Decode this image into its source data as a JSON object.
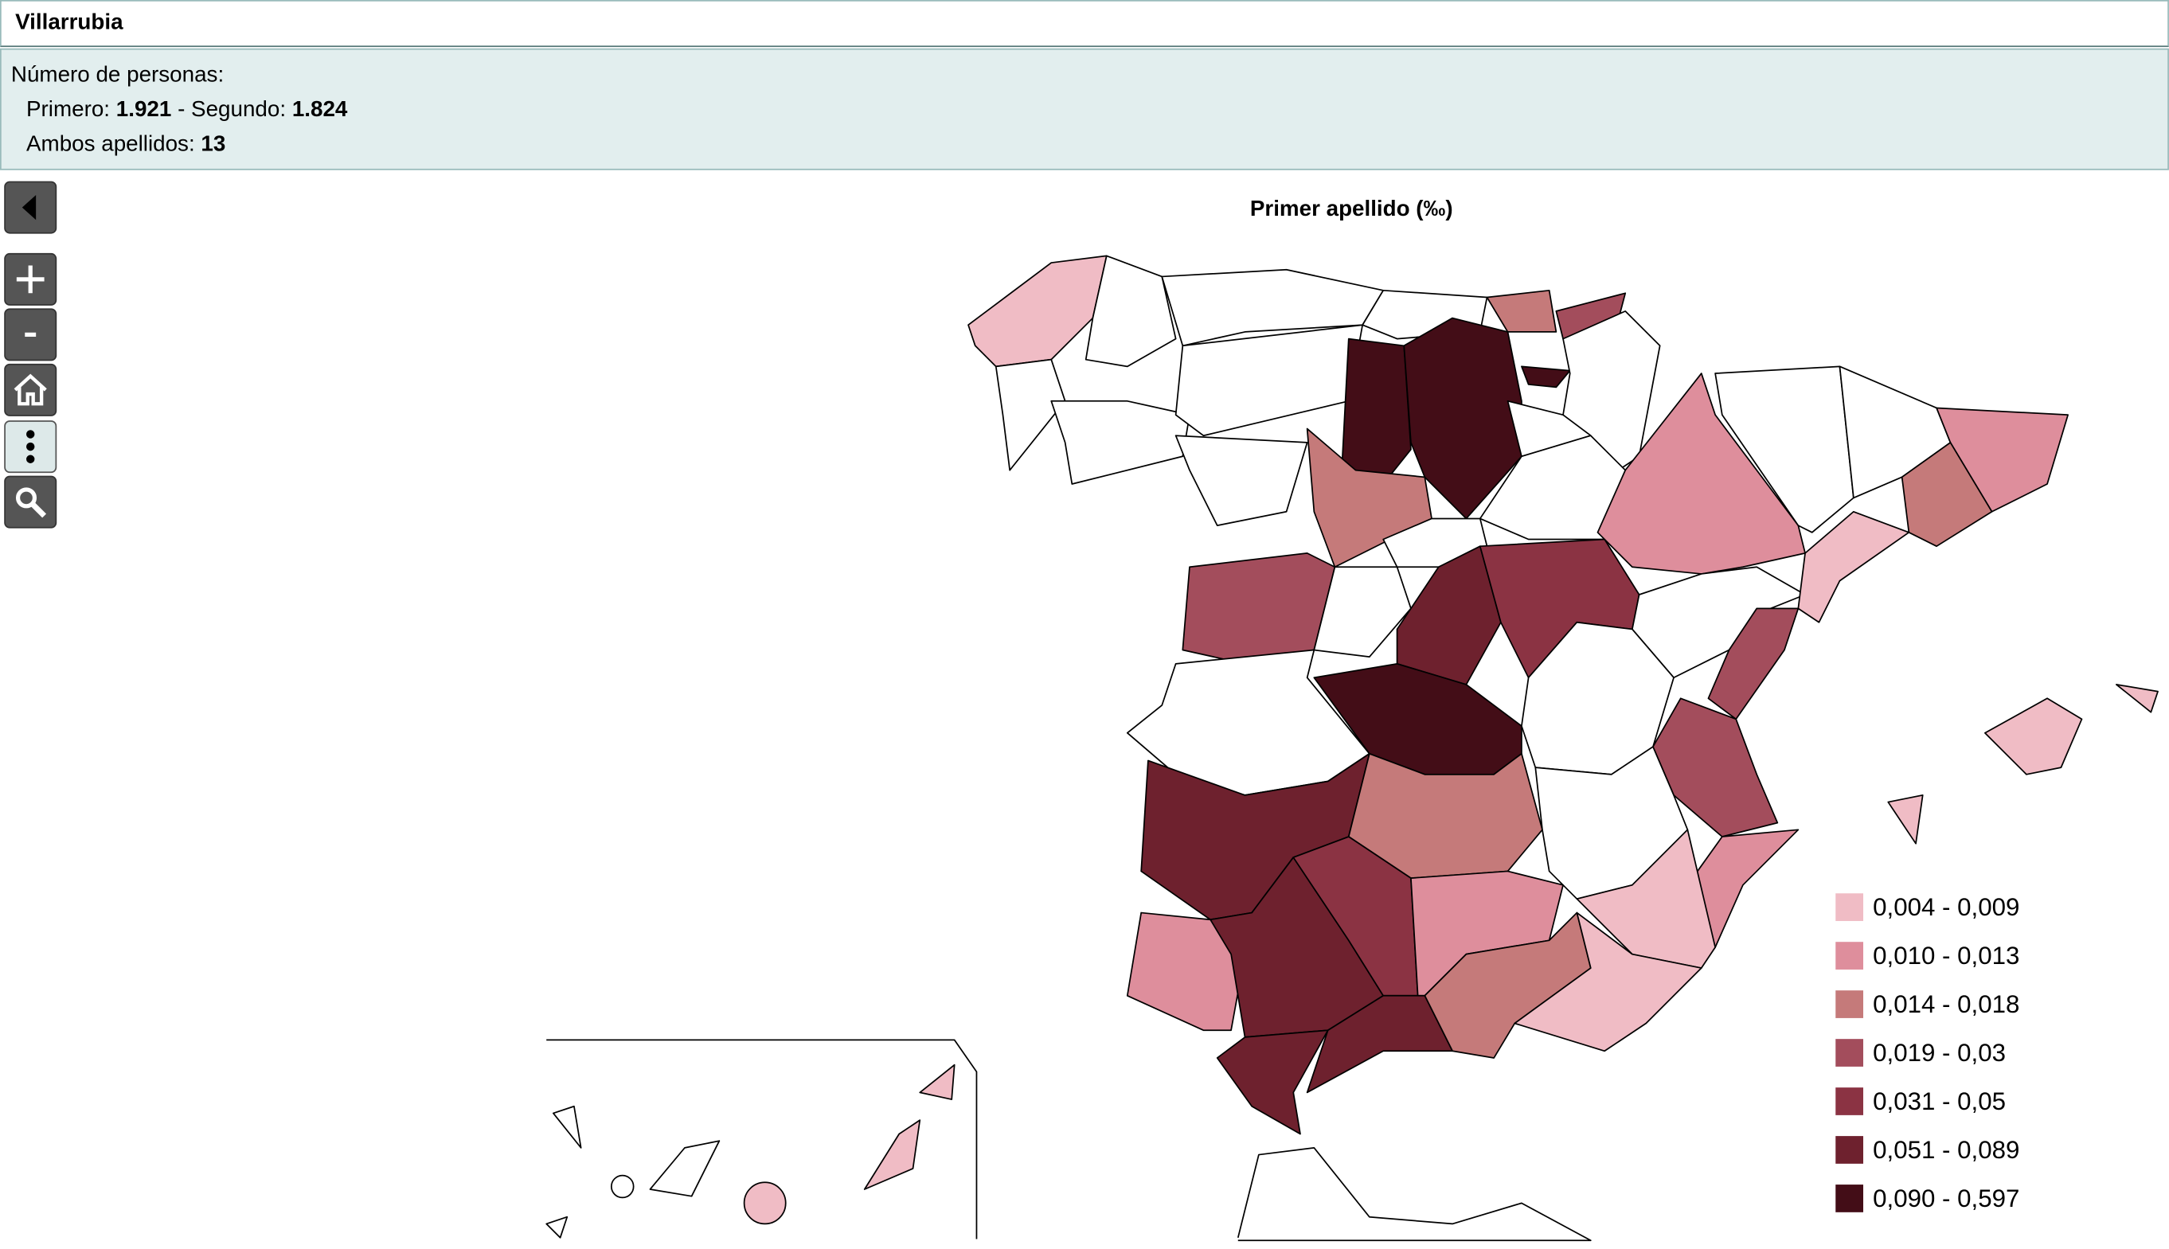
{
  "header": {
    "title": "Villarrubia"
  },
  "summary": {
    "heading": "Número de personas:",
    "first_label": "Primero:",
    "first_value": "1.921",
    "separator": "-",
    "second_label": "Segundo:",
    "second_value": "1.824",
    "both_label": "Ambos apellidos:",
    "both_value": "13"
  },
  "map": {
    "title": "Primer apellido (‰)",
    "legend": [
      {
        "label": "0,004 - 0,009",
        "color": "#f0bcc5"
      },
      {
        "label": "0,010 - 0,013",
        "color": "#de8e9c"
      },
      {
        "label": "0,014 - 0,018",
        "color": "#c57a7a"
      },
      {
        "label": "0,019 - 0,03",
        "color": "#a34d5c"
      },
      {
        "label": "0,031 - 0,05",
        "color": "#8b3343"
      },
      {
        "label": "0,051 - 0,089",
        "color": "#6e212e"
      },
      {
        "label": "0,090 - 0,597",
        "color": "#430d17"
      }
    ]
  }
}
